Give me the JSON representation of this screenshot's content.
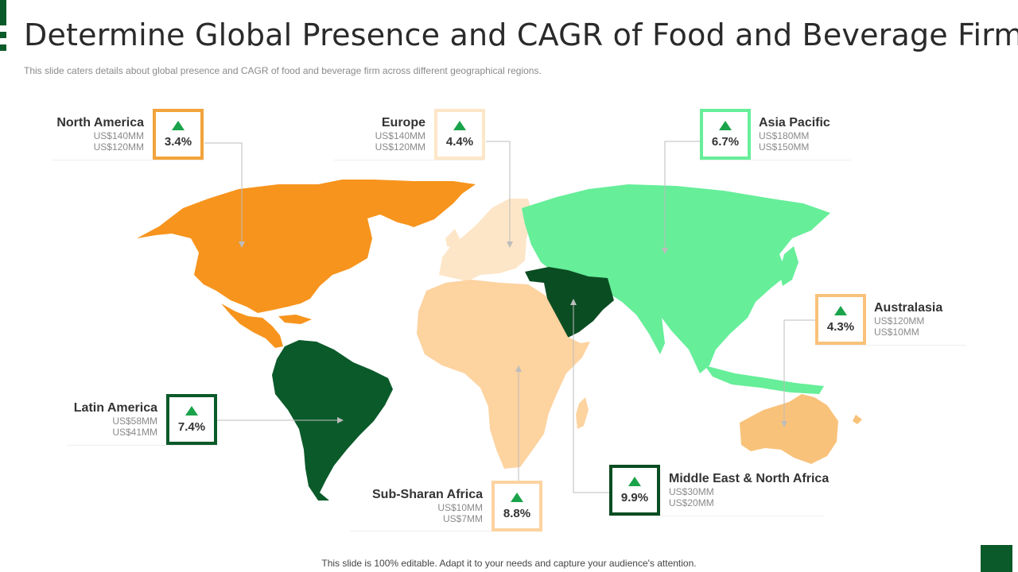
{
  "header": {
    "title": "Determine Global Presence and CAGR of Food and Beverage Firm",
    "subtitle": "This slide caters details about global presence and CAGR of food and beverage  firm across different geographical  regions."
  },
  "colors": {
    "north_america": "#f7941d",
    "europe": "#fde6c8",
    "asia_pacific": "#66ee99",
    "australasia": "#f9c27a",
    "latin_america": "#0b5a2a",
    "sub_saharan_africa": "#fdd3a0",
    "mena": "#0b4d22",
    "arrow": "#1aa34a",
    "brand": "#0b5a2a"
  },
  "regions": {
    "north_america": {
      "name": "North America",
      "cagr": "3.4%",
      "value1": "US$140MM",
      "value2": "US$120MM"
    },
    "europe": {
      "name": "Europe",
      "cagr": "4.4%",
      "value1": "US$140MM",
      "value2": "US$120MM"
    },
    "asia_pacific": {
      "name": "Asia Pacific",
      "cagr": "6.7%",
      "value1": "US$180MM",
      "value2": "US$150MM"
    },
    "australasia": {
      "name": "Australasia",
      "cagr": "4.3%",
      "value1": "US$120MM",
      "value2": "US$10MM"
    },
    "latin_america": {
      "name": "Latin America",
      "cagr": "7.4%",
      "value1": "US$58MM",
      "value2": "US$41MM"
    },
    "sub_saharan_africa": {
      "name": "Sub-Sharan Africa",
      "cagr": "8.8%",
      "value1": "US$10MM",
      "value2": "US$7MM"
    },
    "mena": {
      "name": "Middle East & North Africa",
      "cagr": "9.9%",
      "value1": "US$30MM",
      "value2": "US$20MM"
    }
  },
  "footer": {
    "text": "This slide is 100% editable. Adapt it to your needs and capture your audience's attention."
  }
}
